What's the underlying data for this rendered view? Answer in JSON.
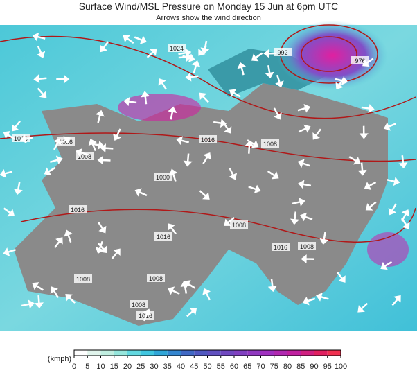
{
  "header": {
    "title": "Surface Wind/MSL Pressure on Monday 15 Jun at 6pm UTC",
    "subtitle": "Arrows show the wind direction"
  },
  "map": {
    "isobar_labels": [
      1024,
      976,
      992,
      1016,
      1008,
      1016,
      1000,
      1008,
      1016,
      1016,
      1008,
      1008,
      1016,
      1008,
      1008,
      1016,
      1008,
      1016
    ]
  },
  "legend": {
    "unit": "(kmph)",
    "ticks": [
      0,
      5,
      10,
      15,
      20,
      25,
      30,
      35,
      40,
      45,
      50,
      55,
      60,
      65,
      70,
      75,
      80,
      85,
      90,
      95,
      100
    ],
    "colors": [
      "#ffffff",
      "#e0f4ec",
      "#c0eee0",
      "#96e6dc",
      "#62d8e0",
      "#40c6e0",
      "#30a6d8",
      "#3486d0",
      "#4068c4",
      "#5058c0",
      "#6050c0",
      "#7048c0",
      "#8040c0",
      "#9038c0",
      "#a030c0",
      "#b028b0",
      "#c020a0",
      "#d02080",
      "#e02060",
      "#f03050"
    ]
  }
}
